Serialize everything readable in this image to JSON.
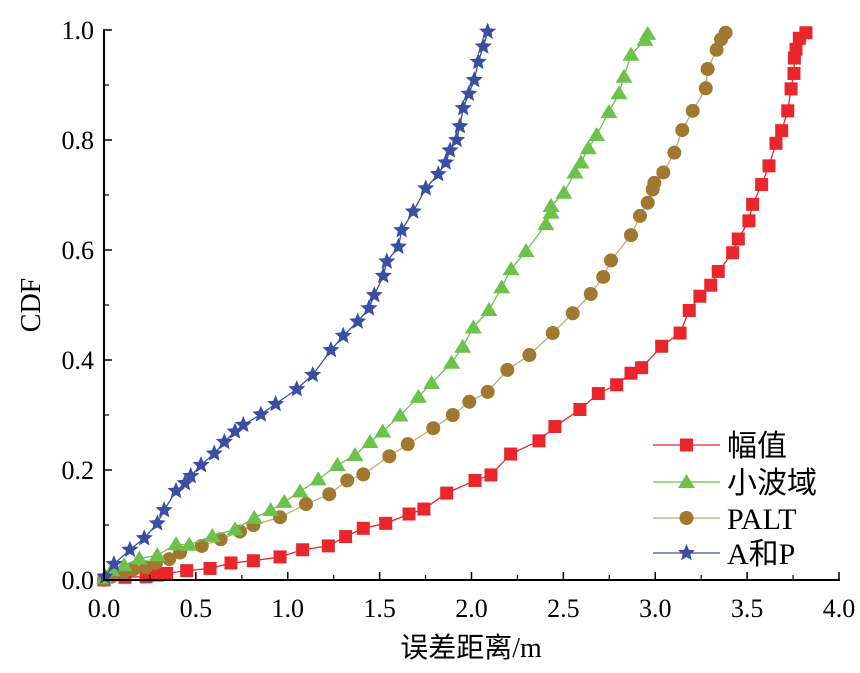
{
  "chart_data": {
    "type": "line",
    "title": "",
    "xlabel": "误差距离/m",
    "ylabel": "CDF",
    "xlim": [
      0,
      4
    ],
    "ylim": [
      0,
      1
    ],
    "xticks": [
      "0.0",
      "0.5",
      "1.0",
      "1.5",
      "2.0",
      "2.5",
      "3.0",
      "3.5",
      "4.0"
    ],
    "xtick_values": [
      0,
      0.5,
      1,
      1.5,
      2,
      2.5,
      3,
      3.5,
      4
    ],
    "yticks": [
      "0.0",
      "0.2",
      "0.4",
      "0.6",
      "0.8",
      "1.0"
    ],
    "ytick_values": [
      0,
      0.2,
      0.4,
      0.6,
      0.8,
      1.0
    ],
    "grid": false,
    "legend_position": "bottom-right",
    "series": [
      {
        "name": "幅值",
        "marker": "square",
        "color": "#E8262C",
        "line_color": "#E8262C",
        "x": [
          0.0,
          0.114,
          0.229,
          0.29,
          0.341,
          0.45,
          0.577,
          0.691,
          0.813,
          0.958,
          1.081,
          1.221,
          1.315,
          1.411,
          1.533,
          1.66,
          1.741,
          1.865,
          2.019,
          2.106,
          2.213,
          2.367,
          2.454,
          2.59,
          2.69,
          2.79,
          2.868,
          2.926,
          3.035,
          3.135,
          3.185,
          3.243,
          3.302,
          3.343,
          3.421,
          3.452,
          3.51,
          3.53,
          3.579,
          3.619,
          3.657,
          3.688,
          3.721,
          3.739,
          3.755,
          3.757,
          3.766,
          3.784,
          3.82
        ],
        "y": [
          0.0,
          0.005,
          0.006,
          0.009,
          0.012,
          0.017,
          0.021,
          0.031,
          0.035,
          0.042,
          0.055,
          0.062,
          0.079,
          0.094,
          0.103,
          0.12,
          0.129,
          0.158,
          0.181,
          0.191,
          0.229,
          0.253,
          0.279,
          0.31,
          0.339,
          0.355,
          0.376,
          0.386,
          0.425,
          0.449,
          0.49,
          0.516,
          0.536,
          0.561,
          0.595,
          0.62,
          0.653,
          0.683,
          0.719,
          0.753,
          0.794,
          0.817,
          0.853,
          0.893,
          0.921,
          0.949,
          0.965,
          0.985,
          0.995
        ]
      },
      {
        "name": "小波域",
        "marker": "triangle",
        "color": "#6CC24A",
        "line_color": "#6CC24A",
        "x": [
          0.003,
          0.042,
          0.109,
          0.192,
          0.29,
          0.392,
          0.464,
          0.589,
          0.713,
          0.818,
          0.907,
          0.981,
          1.067,
          1.166,
          1.27,
          1.366,
          1.448,
          1.517,
          1.611,
          1.711,
          1.783,
          1.892,
          1.952,
          2.01,
          2.095,
          2.164,
          2.215,
          2.297,
          2.405,
          2.433,
          2.433,
          2.503,
          2.563,
          2.596,
          2.636,
          2.681,
          2.748,
          2.803,
          2.83,
          2.868,
          2.944,
          2.959
        ],
        "y": [
          0.004,
          0.018,
          0.027,
          0.039,
          0.045,
          0.065,
          0.064,
          0.08,
          0.092,
          0.113,
          0.127,
          0.142,
          0.161,
          0.183,
          0.209,
          0.227,
          0.251,
          0.27,
          0.299,
          0.333,
          0.358,
          0.395,
          0.424,
          0.459,
          0.491,
          0.532,
          0.565,
          0.598,
          0.647,
          0.668,
          0.68,
          0.704,
          0.741,
          0.759,
          0.785,
          0.809,
          0.851,
          0.885,
          0.915,
          0.955,
          0.982,
          0.993
        ]
      },
      {
        "name": "PALT",
        "marker": "circle",
        "color": "#A07830",
        "line_color": "#C8A870",
        "x": [
          0.0,
          0.042,
          0.102,
          0.159,
          0.229,
          0.283,
          0.355,
          0.414,
          0.532,
          0.635,
          0.74,
          0.813,
          0.958,
          1.099,
          1.226,
          1.324,
          1.411,
          1.553,
          1.653,
          1.792,
          1.898,
          1.988,
          2.088,
          2.195,
          2.315,
          2.442,
          2.551,
          2.649,
          2.717,
          2.759,
          2.868,
          2.917,
          2.959,
          2.986,
          2.995,
          3.044,
          3.104,
          3.147,
          3.204,
          3.275,
          3.285,
          3.334,
          3.358,
          3.383
        ],
        "y": [
          0.0,
          0.006,
          0.012,
          0.019,
          0.023,
          0.031,
          0.038,
          0.05,
          0.062,
          0.074,
          0.088,
          0.1,
          0.114,
          0.138,
          0.156,
          0.181,
          0.192,
          0.225,
          0.247,
          0.276,
          0.3,
          0.324,
          0.342,
          0.382,
          0.409,
          0.449,
          0.485,
          0.52,
          0.551,
          0.581,
          0.627,
          0.662,
          0.686,
          0.71,
          0.722,
          0.741,
          0.777,
          0.818,
          0.853,
          0.894,
          0.929,
          0.964,
          0.983,
          0.995
        ]
      },
      {
        "name": "A和P",
        "marker": "star",
        "color": "#3A4FA3",
        "line_color": "#3A4FA3",
        "x": [
          0.005,
          0.054,
          0.141,
          0.219,
          0.29,
          0.327,
          0.392,
          0.441,
          0.472,
          0.528,
          0.6,
          0.655,
          0.713,
          0.758,
          0.854,
          0.934,
          1.049,
          1.136,
          1.235,
          1.302,
          1.381,
          1.442,
          1.471,
          1.52,
          1.539,
          1.602,
          1.62,
          1.683,
          1.751,
          1.819,
          1.86,
          1.883,
          1.919,
          1.937,
          1.955,
          1.986,
          2.015,
          2.037,
          2.064,
          2.088
        ],
        "y": [
          0.006,
          0.029,
          0.055,
          0.076,
          0.103,
          0.127,
          0.162,
          0.176,
          0.189,
          0.209,
          0.23,
          0.251,
          0.27,
          0.282,
          0.301,
          0.32,
          0.347,
          0.373,
          0.418,
          0.444,
          0.47,
          0.494,
          0.518,
          0.553,
          0.579,
          0.606,
          0.636,
          0.67,
          0.712,
          0.738,
          0.759,
          0.781,
          0.8,
          0.825,
          0.858,
          0.884,
          0.909,
          0.942,
          0.97,
          0.997
        ]
      }
    ]
  }
}
